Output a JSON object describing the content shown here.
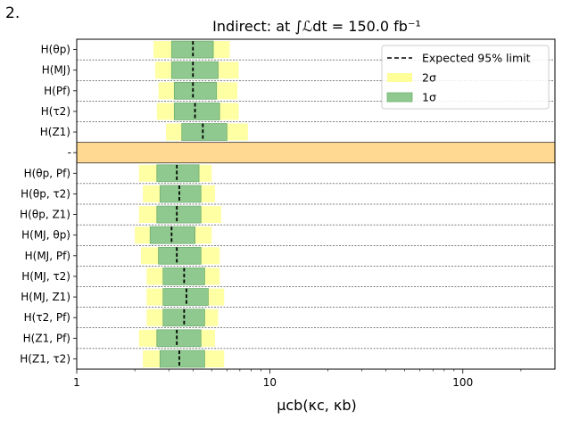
{
  "panel_label": "2.",
  "chart_data": {
    "type": "interval",
    "title_text": "Indirect: at ∫ℒdt = 150.0 fb⁻¹",
    "xlabel": "μcb(κc, κb)",
    "xscale": "log",
    "xlim": [
      1,
      300
    ],
    "xticks": [
      {
        "value": 1,
        "label": "1"
      },
      {
        "value": 10,
        "label": "10"
      },
      {
        "value": 100,
        "label": "100"
      }
    ],
    "legend": {
      "position": "top-right",
      "entries": [
        {
          "key": "expected",
          "label": "Expected 95% limit"
        },
        {
          "key": "two_sigma",
          "label": "2σ"
        },
        {
          "key": "one_sigma",
          "label": "1σ"
        }
      ]
    },
    "colors": {
      "two_sigma": "#ffff99",
      "one_sigma": "#8fc98f",
      "expected": "#000000",
      "separator": "#ffd991",
      "separator_edge": "#333333"
    },
    "separator_label": "-",
    "groups": [
      {
        "rows": [
          {
            "label": "H(θp)",
            "expected": 4.0,
            "one_sigma": [
              3.1,
              5.1
            ],
            "two_sigma": [
              2.5,
              6.2
            ]
          },
          {
            "label": "H(MJ)",
            "expected": 4.0,
            "one_sigma": [
              3.1,
              5.4
            ],
            "two_sigma": [
              2.55,
              6.9
            ]
          },
          {
            "label": "H(Pf)",
            "expected": 4.0,
            "one_sigma": [
              3.2,
              5.3
            ],
            "two_sigma": [
              2.65,
              6.8
            ]
          },
          {
            "label": "H(τ2)",
            "expected": 4.1,
            "one_sigma": [
              3.2,
              5.5
            ],
            "two_sigma": [
              2.6,
              6.9
            ]
          },
          {
            "label": "H(Z1)",
            "expected": 4.5,
            "one_sigma": [
              3.5,
              6.0
            ],
            "two_sigma": [
              2.9,
              7.7
            ]
          }
        ]
      },
      {
        "rows": [
          {
            "label": "H(θp, Pf)",
            "expected": 3.3,
            "one_sigma": [
              2.6,
              4.3
            ],
            "two_sigma": [
              2.1,
              5.0
            ]
          },
          {
            "label": "H(θp, τ2)",
            "expected": 3.4,
            "one_sigma": [
              2.7,
              4.4
            ],
            "two_sigma": [
              2.2,
              5.2
            ]
          },
          {
            "label": "H(θp, Z1)",
            "expected": 3.3,
            "one_sigma": [
              2.6,
              4.4
            ],
            "two_sigma": [
              2.1,
              5.6
            ]
          },
          {
            "label": "H(MJ, θp)",
            "expected": 3.1,
            "one_sigma": [
              2.4,
              4.1
            ],
            "two_sigma": [
              2.0,
              5.0
            ]
          },
          {
            "label": "H(MJ, Pf)",
            "expected": 3.3,
            "one_sigma": [
              2.65,
              4.4
            ],
            "two_sigma": [
              2.15,
              5.5
            ]
          },
          {
            "label": "H(MJ, τ2)",
            "expected": 3.6,
            "one_sigma": [
              2.8,
              4.6
            ],
            "two_sigma": [
              2.3,
              5.5
            ]
          },
          {
            "label": "H(MJ, Z1)",
            "expected": 3.7,
            "one_sigma": [
              2.8,
              4.8
            ],
            "two_sigma": [
              2.3,
              5.8
            ]
          },
          {
            "label": "H(τ2, Pf)",
            "expected": 3.6,
            "one_sigma": [
              2.8,
              4.6
            ],
            "two_sigma": [
              2.3,
              5.4
            ]
          },
          {
            "label": "H(Z1, Pf)",
            "expected": 3.3,
            "one_sigma": [
              2.6,
              4.4
            ],
            "two_sigma": [
              2.1,
              5.2
            ]
          },
          {
            "label": "H(Z1, τ2)",
            "expected": 3.4,
            "one_sigma": [
              2.7,
              4.6
            ],
            "two_sigma": [
              2.2,
              5.8
            ]
          }
        ]
      }
    ]
  }
}
